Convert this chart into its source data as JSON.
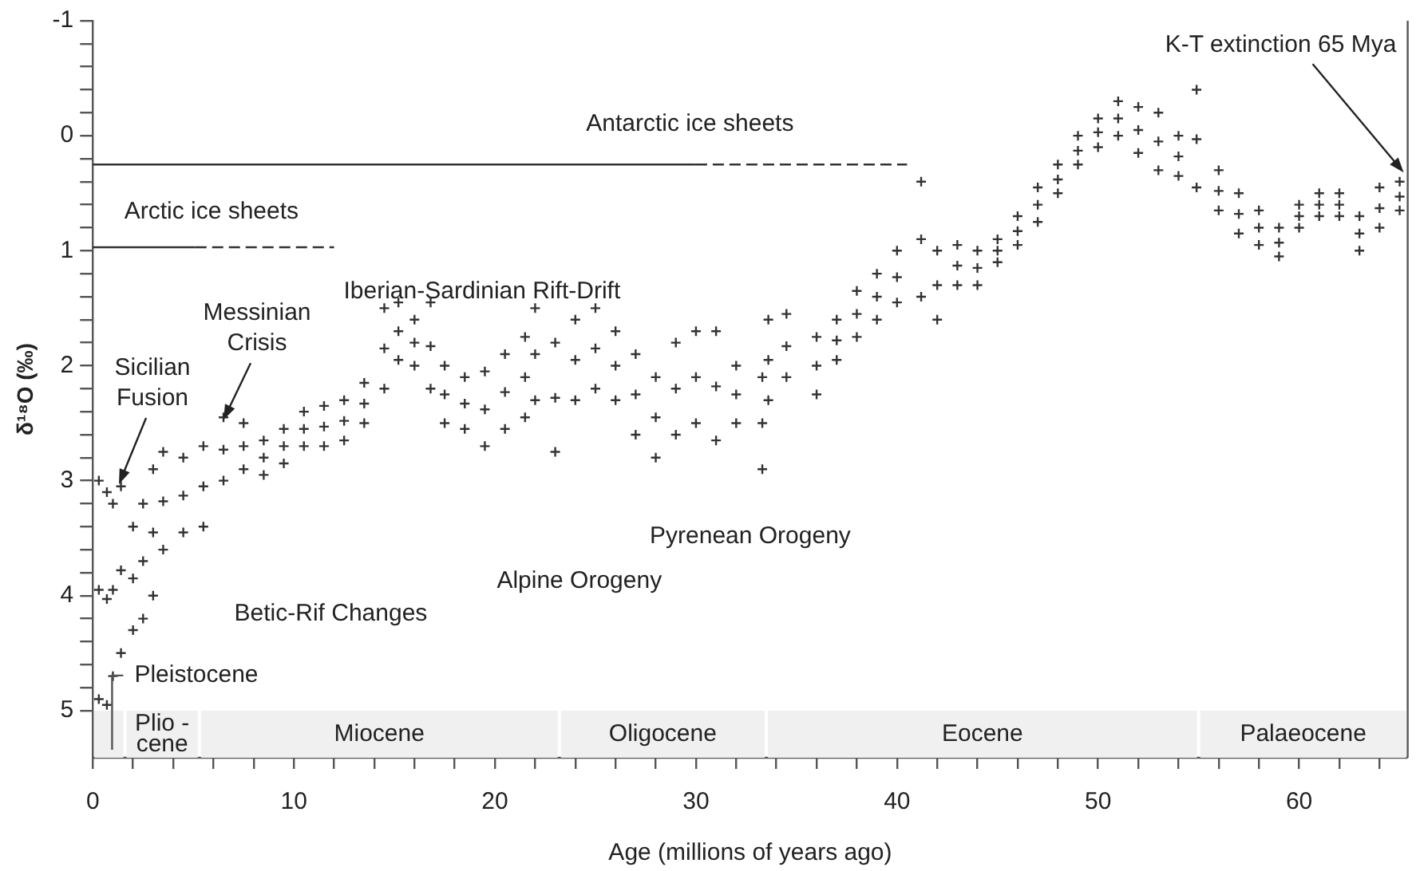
{
  "chart_data": {
    "type": "scatter",
    "xlabel": "Age (millions of years ago)",
    "ylabel": "δ¹⁸O (‰)",
    "xlim": [
      0,
      65.4
    ],
    "ylim": [
      5.41,
      -1
    ],
    "xticks": [
      0,
      {
        "value": 2,
        "label": null
      },
      {
        "value": 4,
        "label": null
      },
      {
        "value": 6,
        "label": null
      },
      {
        "value": 8,
        "label": null
      },
      10,
      {
        "value": 12,
        "label": null
      },
      {
        "value": 14,
        "label": null
      },
      {
        "value": 16,
        "label": null
      },
      {
        "value": 18,
        "label": null
      },
      20,
      {
        "value": 22,
        "label": null
      },
      {
        "value": 24,
        "label": null
      },
      {
        "value": 26,
        "label": null
      },
      {
        "value": 28,
        "label": null
      },
      30,
      {
        "value": 32,
        "label": null
      },
      {
        "value": 34,
        "label": null
      },
      {
        "value": 36,
        "label": null
      },
      {
        "value": 38,
        "label": null
      },
      40,
      {
        "value": 42,
        "label": null
      },
      {
        "value": 44,
        "label": null
      },
      {
        "value": 46,
        "label": null
      },
      {
        "value": 48,
        "label": null
      },
      50,
      {
        "value": 52,
        "label": null
      },
      {
        "value": 54,
        "label": null
      },
      {
        "value": 56,
        "label": null
      },
      {
        "value": 58,
        "label": null
      },
      60,
      {
        "value": 62,
        "label": null
      },
      {
        "value": 64,
        "label": null
      }
    ],
    "yticks": [
      -1,
      {
        "value": -0.8,
        "label": null
      },
      {
        "value": -0.6,
        "label": null
      },
      {
        "value": -0.4,
        "label": null
      },
      {
        "value": -0.2,
        "label": null
      },
      0,
      {
        "value": 0.2,
        "label": null
      },
      {
        "value": 0.4,
        "label": null
      },
      {
        "value": 0.6,
        "label": null
      },
      {
        "value": 0.8,
        "label": null
      },
      1,
      {
        "value": 1.2,
        "label": null
      },
      {
        "value": 1.4,
        "label": null
      },
      {
        "value": 1.6,
        "label": null
      },
      {
        "value": 1.8,
        "label": null
      },
      2,
      {
        "value": 2.2,
        "label": null
      },
      {
        "value": 2.4,
        "label": null
      },
      {
        "value": 2.6,
        "label": null
      },
      {
        "value": 2.8,
        "label": null
      },
      3,
      {
        "value": 3.2,
        "label": null
      },
      {
        "value": 3.4,
        "label": null
      },
      {
        "value": 3.6,
        "label": null
      },
      {
        "value": 3.8,
        "label": null
      },
      4,
      {
        "value": 4.2,
        "label": null
      },
      {
        "value": 4.4,
        "label": null
      },
      {
        "value": 4.6,
        "label": null
      },
      {
        "value": 4.8,
        "label": null
      },
      5
    ],
    "grid": false,
    "legend": false,
    "marker": "cross",
    "x": [
      0.3,
      0.7,
      1.0,
      1.4,
      2.0,
      2.5,
      3.0,
      3.5,
      4.5,
      5.5,
      6.5,
      7.5,
      8.5,
      9.5,
      10.5,
      11.5,
      12.5,
      13.5,
      14.5,
      15.2,
      16.0,
      16.8,
      17.5,
      18.5,
      19.5,
      20.5,
      21.5,
      22.0,
      23.0,
      24.0,
      25.0,
      26.0,
      27.0,
      28.0,
      29.0,
      30.0,
      31.0,
      32.0,
      33.3,
      33.6,
      34.5,
      36.0,
      37.0,
      38.0,
      39.0,
      40.0,
      41.2,
      42.0,
      43.0,
      44.0,
      45.0,
      46.0,
      47.0,
      48.0,
      49.0,
      50.0,
      51.0,
      52.0,
      53.0,
      54.0,
      54.9,
      56.0,
      57.0,
      58.0,
      59.0,
      60.0,
      61.0,
      62.0,
      63.0,
      64.0,
      65.0
    ],
    "series": [
      {
        "color": "#333333",
        "values": [
          3.0,
          3.1,
          3.2,
          3.05,
          3.4,
          3.2,
          2.9,
          2.75,
          2.8,
          2.7,
          2.45,
          2.5,
          2.65,
          2.55,
          2.4,
          2.35,
          2.3,
          2.15,
          1.5,
          1.45,
          1.6,
          1.45,
          2.0,
          2.1,
          2.05,
          1.9,
          1.75,
          1.5,
          1.8,
          1.6,
          1.5,
          1.7,
          1.9,
          2.1,
          1.8,
          1.7,
          1.7,
          2.0,
          2.1,
          1.6,
          1.55,
          1.75,
          1.6,
          1.35,
          1.2,
          1.0,
          0.4,
          1.0,
          0.95,
          1.0,
          0.9,
          0.7,
          0.45,
          0.25,
          0.0,
          -0.15,
          -0.3,
          -0.25,
          -0.2,
          0.0,
          -0.4,
          0.3,
          0.5,
          0.65,
          0.8,
          0.6,
          0.5,
          0.5,
          0.7,
          0.45,
          0.4
        ]
      },
      {
        "color": "#333333",
        "values": [
          3.95,
          4.03,
          3.95,
          3.78,
          3.85,
          3.7,
          3.45,
          3.18,
          3.13,
          3.05,
          2.73,
          2.7,
          2.8,
          2.7,
          2.55,
          2.53,
          2.48,
          2.33,
          1.85,
          1.7,
          1.8,
          1.83,
          2.25,
          2.33,
          2.38,
          2.23,
          2.1,
          1.9,
          2.28,
          1.95,
          1.85,
          2.0,
          2.25,
          2.45,
          2.2,
          2.1,
          2.18,
          2.25,
          2.5,
          1.95,
          1.83,
          2.0,
          1.78,
          1.55,
          1.4,
          1.23,
          0.9,
          1.3,
          1.13,
          1.15,
          1.0,
          0.83,
          0.6,
          0.38,
          0.13,
          -0.03,
          -0.15,
          -0.05,
          0.05,
          0.18,
          0.03,
          0.48,
          0.68,
          0.8,
          0.93,
          0.7,
          0.6,
          0.6,
          0.85,
          0.63,
          0.53
        ]
      },
      {
        "color": "#333333",
        "values": [
          4.9,
          4.95,
          4.7,
          4.5,
          4.3,
          4.2,
          4.0,
          3.6,
          3.45,
          3.4,
          3.0,
          2.9,
          2.95,
          2.85,
          2.7,
          2.7,
          2.65,
          2.5,
          2.2,
          1.95,
          2.0,
          2.2,
          2.5,
          2.55,
          2.7,
          2.55,
          2.45,
          2.3,
          2.75,
          2.3,
          2.2,
          2.3,
          2.6,
          2.8,
          2.6,
          2.5,
          2.65,
          2.5,
          2.9,
          2.3,
          2.1,
          2.25,
          1.95,
          1.75,
          1.6,
          1.45,
          1.4,
          1.6,
          1.3,
          1.3,
          1.1,
          0.95,
          0.75,
          0.5,
          0.25,
          0.1,
          0.0,
          0.15,
          0.3,
          0.35,
          0.45,
          0.65,
          0.85,
          0.95,
          1.05,
          0.8,
          0.7,
          0.7,
          1.0,
          0.8,
          0.65
        ]
      },
      {
        "type": "line",
        "marker": "none",
        "line_style": "solid",
        "color": "#333333",
        "x": [
          0,
          30
        ],
        "values": [
          0.25,
          0.25
        ]
      },
      {
        "type": "line",
        "marker": "none",
        "line_style": "dashed",
        "color": "#333333",
        "x": [
          30,
          40.5
        ],
        "values": [
          0.25,
          0.25
        ]
      },
      {
        "type": "line",
        "marker": "none",
        "line_style": "solid",
        "color": "#333333",
        "x": [
          0,
          5.1
        ],
        "values": [
          0.97,
          0.97
        ]
      },
      {
        "type": "line",
        "marker": "none",
        "line_style": "dashed",
        "color": "#333333",
        "x": [
          5.1,
          12
        ],
        "values": [
          0.97,
          0.97
        ]
      }
    ],
    "bands": [
      {
        "axis": "x",
        "from": 0,
        "to": 1.6,
        "label": "Pleistocene",
        "color": "#f0f0f0"
      },
      {
        "axis": "x",
        "from": 1.6,
        "to": 5.3,
        "label": "Plio -\ncene",
        "color": "#f0f0f0"
      },
      {
        "axis": "x",
        "from": 5.3,
        "to": 23.2,
        "label": "Miocene",
        "color": "#f0f0f0"
      },
      {
        "axis": "x",
        "from": 23.2,
        "to": 33.5,
        "label": "Oligocene",
        "color": "#f0f0f0"
      },
      {
        "axis": "x",
        "from": 33.5,
        "to": 55,
        "label": "Eocene",
        "color": "#f0f0f0"
      },
      {
        "axis": "x",
        "from": 55,
        "to": 65.4,
        "label": "Palaeocene",
        "color": "#f0f0f0"
      }
    ],
    "annotations": [
      {
        "text": "Antarctic ice sheets",
        "x": 29.7,
        "y": 0.25
      },
      {
        "text": "Arctic ice sheets",
        "x": 5.9,
        "y": 0.97
      },
      "Iberian-Sardinian Rift-Drift",
      {
        "text": "Messinian\nCrisis",
        "x": 6.5,
        "y": 2.47
      },
      {
        "text": "Sicilian\nFusion",
        "x": 1.3,
        "y": 3.03
      },
      {
        "text": "K-T extinction 65 Mya",
        "x": 65.2,
        "y": 0.32
      },
      "Betic-Rif Changes",
      "Alpine Orogeny",
      "Pyrenean Orogeny"
    ]
  }
}
